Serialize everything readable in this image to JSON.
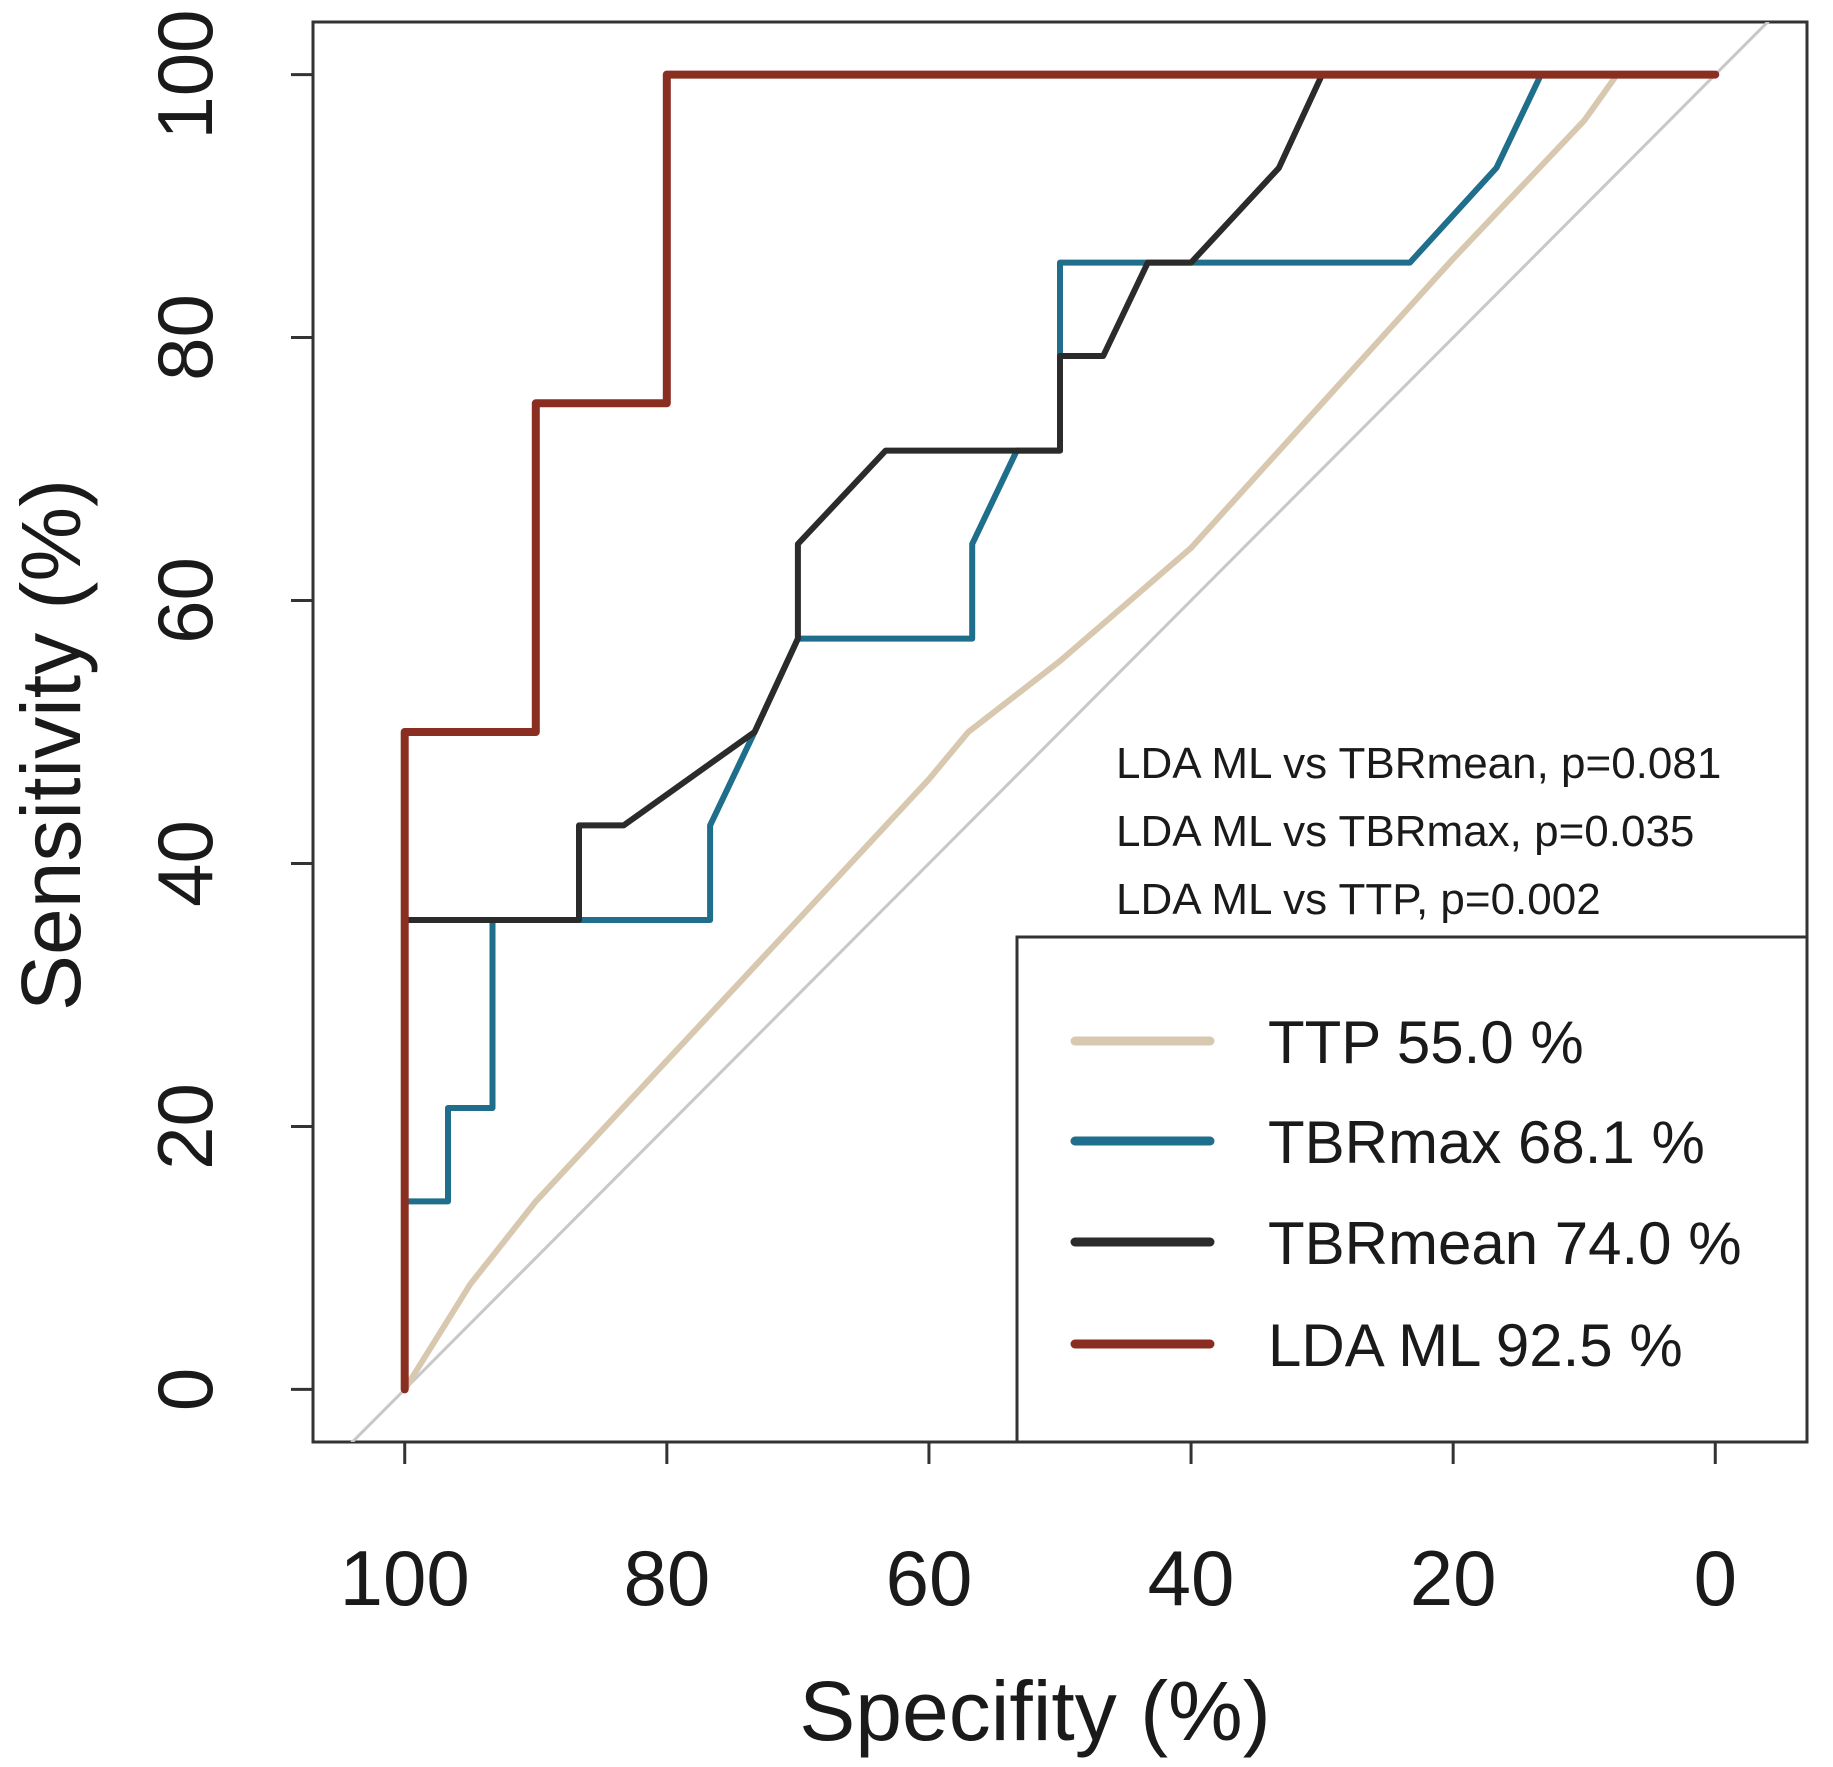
{
  "chart_data": {
    "type": "line",
    "xlabel": "Specifity (%)",
    "ylabel": "Sensitivity (%)",
    "xlim": [
      107,
      -7
    ],
    "ylim": [
      -4,
      104
    ],
    "x_reversed": true,
    "xticks": [
      100,
      80,
      60,
      40,
      20,
      0
    ],
    "yticks": [
      0,
      20,
      40,
      60,
      80,
      100
    ],
    "x_tick_labels": [
      "100",
      "80",
      "60",
      "40",
      "20",
      "0"
    ],
    "y_tick_labels": [
      "0",
      "20",
      "40",
      "60",
      "80",
      "100"
    ],
    "grid": false,
    "reference_line": {
      "from": [
        100,
        0
      ],
      "to": [
        0,
        100
      ],
      "color": "#c8c8c8"
    },
    "annotations": [
      "LDA ML vs TBRmean, p=0.081",
      "LDA ML vs TBRmax, p=0.035",
      "LDA ML vs TTP, p=0.002"
    ],
    "legend_position": "bottom-right",
    "series": [
      {
        "name": "TTP",
        "legend_label": "TTP 55.0 %",
        "auc_percent": 55.0,
        "color": "#d8c8b0",
        "points": [
          [
            100,
            0
          ],
          [
            95,
            8
          ],
          [
            90,
            14.3
          ],
          [
            80,
            25
          ],
          [
            70,
            35.7
          ],
          [
            60,
            46.4
          ],
          [
            57,
            50
          ],
          [
            50,
            55.4
          ],
          [
            40,
            64
          ],
          [
            30,
            75
          ],
          [
            20,
            86
          ],
          [
            10,
            96.5
          ],
          [
            7.5,
            100
          ],
          [
            0,
            100
          ]
        ]
      },
      {
        "name": "TBRmax",
        "legend_label": "TBRmax 68.1 %",
        "auc_percent": 68.1,
        "color": "#1f6e8c",
        "points": [
          [
            100,
            0
          ],
          [
            100,
            14.3
          ],
          [
            96.7,
            14.3
          ],
          [
            96.7,
            21.4
          ],
          [
            93.3,
            21.4
          ],
          [
            93.3,
            35.7
          ],
          [
            76.7,
            35.7
          ],
          [
            76.7,
            42.9
          ],
          [
            73.3,
            50
          ],
          [
            70,
            57.1
          ],
          [
            56.7,
            57.1
          ],
          [
            56.7,
            64.3
          ],
          [
            53.3,
            71.4
          ],
          [
            50,
            71.4
          ],
          [
            50,
            85.7
          ],
          [
            23.3,
            85.7
          ],
          [
            16.7,
            92.9
          ],
          [
            13.3,
            100
          ],
          [
            0,
            100
          ]
        ]
      },
      {
        "name": "TBRmean",
        "legend_label": "TBRmean 74.0 %",
        "auc_percent": 74.0,
        "color": "#2b2b2b",
        "points": [
          [
            100,
            0
          ],
          [
            100,
            35.7
          ],
          [
            86.7,
            35.7
          ],
          [
            86.7,
            42.9
          ],
          [
            83.3,
            42.9
          ],
          [
            73.3,
            50
          ],
          [
            70,
            57.1
          ],
          [
            70,
            64.3
          ],
          [
            63.3,
            71.4
          ],
          [
            50,
            71.4
          ],
          [
            50,
            78.6
          ],
          [
            46.7,
            78.6
          ],
          [
            43.3,
            85.7
          ],
          [
            40,
            85.7
          ],
          [
            33.3,
            92.9
          ],
          [
            30,
            100
          ],
          [
            0,
            100
          ]
        ]
      },
      {
        "name": "LDA ML",
        "legend_label": "LDA ML 92.5 %",
        "auc_percent": 92.5,
        "color": "#8b2e22",
        "points": [
          [
            100,
            0
          ],
          [
            100,
            50
          ],
          [
            90,
            50
          ],
          [
            90,
            75
          ],
          [
            80,
            75
          ],
          [
            80,
            100
          ],
          [
            0,
            100
          ]
        ]
      }
    ]
  }
}
